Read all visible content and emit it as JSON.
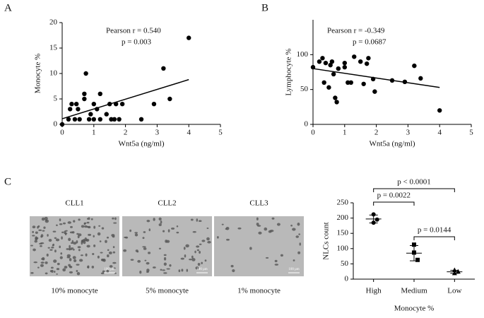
{
  "chart_data": [
    {
      "type": "scatter",
      "panel": "A",
      "xlabel": "Wnt5a (ng/ml)",
      "ylabel": "Monocyte %",
      "annotations": [
        "Pearson r = 0.540",
        "p = 0.003"
      ],
      "x": [
        0,
        0.2,
        0.25,
        0.3,
        0.4,
        0.45,
        0.5,
        0.55,
        0.7,
        0.7,
        0.75,
        0.85,
        0.9,
        1.0,
        1.0,
        1.1,
        1.2,
        1.2,
        1.4,
        1.5,
        1.55,
        1.65,
        1.7,
        1.8,
        1.9,
        2.5,
        2.9,
        3.2,
        3.4,
        4.0
      ],
      "values": [
        0,
        1,
        3,
        4,
        1,
        4,
        3,
        1,
        6,
        5,
        10,
        1,
        2,
        4,
        1,
        3,
        6,
        1,
        2,
        4,
        1,
        1,
        4,
        1,
        4,
        1,
        4,
        11,
        5,
        17
      ],
      "fit": {
        "x": [
          0,
          4
        ],
        "values": [
          1.1,
          8.8
        ]
      },
      "color": "#000000",
      "xlim": [
        0,
        5
      ],
      "xticks": [
        0,
        1,
        2,
        3,
        4,
        5
      ],
      "ylim": [
        0,
        20
      ],
      "yticks": [
        0,
        5,
        10,
        15,
        20
      ]
    },
    {
      "type": "scatter",
      "panel": "B",
      "xlabel": "Wnt5a (ng/ml)",
      "ylabel": "Lymphocyte %",
      "annotations": [
        "Pearson r = -0.349",
        "p = 0.0687"
      ],
      "x": [
        0,
        0.2,
        0.3,
        0.35,
        0.4,
        0.5,
        0.55,
        0.6,
        0.65,
        0.7,
        0.75,
        0.8,
        1.0,
        1.0,
        1.1,
        1.2,
        1.3,
        1.5,
        1.6,
        1.7,
        1.75,
        1.9,
        1.95,
        2.5,
        2.9,
        3.2,
        3.4,
        4.0
      ],
      "values": [
        82,
        90,
        95,
        60,
        88,
        53,
        85,
        90,
        72,
        38,
        32,
        80,
        88,
        82,
        60,
        60,
        97,
        90,
        58,
        87,
        95,
        65,
        47,
        63,
        61,
        84,
        66,
        20
      ],
      "fit": {
        "x": [
          0,
          4
        ],
        "values": [
          80,
          53
        ]
      },
      "color": "#000000",
      "xlim": [
        0,
        5
      ],
      "xticks": [
        0,
        1,
        2,
        3,
        4,
        5
      ],
      "ylim": [
        0,
        150
      ],
      "yticks": [
        0,
        50,
        100
      ]
    },
    {
      "type": "dot",
      "panel": "C",
      "xlabel": "Monocyte %",
      "ylabel": "NLCs count",
      "categories": [
        "High",
        "Medium",
        "Low"
      ],
      "points": [
        [
          212,
          185,
          195
        ],
        [
          113,
          87,
          63
        ],
        [
          30,
          20,
          25
        ]
      ],
      "markers": [
        "circle",
        "square",
        "triangle"
      ],
      "means": [
        197,
        85,
        24
      ],
      "errors": [
        13,
        25,
        5
      ],
      "comparisons": [
        {
          "from": 0,
          "to": 2,
          "label": "p < 0.0001"
        },
        {
          "from": 0,
          "to": 1,
          "label": "p = 0.0022"
        },
        {
          "from": 1,
          "to": 2,
          "label": "p = 0.0144"
        }
      ],
      "color": "#000000",
      "ylim": [
        0,
        250
      ],
      "yticks": [
        0,
        50,
        100,
        150,
        200,
        250
      ]
    }
  ],
  "images": [
    {
      "label": "CLL1",
      "caption": "10% monocyte",
      "scale_bar": "100 μm"
    },
    {
      "label": "CLL2",
      "caption": "5% monocyte",
      "scale_bar": "100 μm"
    },
    {
      "label": "CLL3",
      "caption": "1% monocyte",
      "scale_bar": "100 μm"
    }
  ]
}
